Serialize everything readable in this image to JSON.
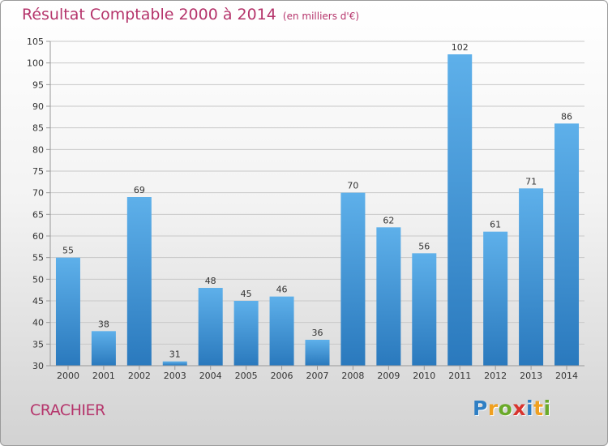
{
  "header": {
    "title": "Résultat Comptable 2000 à 2014",
    "unit": "(en milliers d'€)"
  },
  "commune": "CRACHIER",
  "brand": {
    "logo_text": "Proxiti",
    "letters": [
      {
        "ch": "P",
        "color": "#2f7fc4"
      },
      {
        "ch": "r",
        "color": "#f0a020"
      },
      {
        "ch": "o",
        "color": "#6aaa2a"
      },
      {
        "ch": "x",
        "color": "#d8342e"
      },
      {
        "ch": "i",
        "color": "#2f7fc4"
      },
      {
        "ch": "t",
        "color": "#f0a020"
      },
      {
        "ch": "i",
        "color": "#6aaa2a"
      }
    ]
  },
  "colors": {
    "title": "#b5346b",
    "bar_top": "#5eb0ea",
    "bar_bottom": "#2a79bd",
    "grid": "#c8c8c8",
    "axis": "#999999"
  },
  "chart_data": {
    "type": "bar",
    "title": "Résultat Comptable 2000 à 2014",
    "subtitle": "(en milliers d'€)",
    "xlabel": "",
    "ylabel": "",
    "categories": [
      "2000",
      "2001",
      "2002",
      "2003",
      "2004",
      "2005",
      "2006",
      "2007",
      "2008",
      "2009",
      "2010",
      "2011",
      "2012",
      "2013",
      "2014"
    ],
    "values": [
      55,
      38,
      69,
      31,
      48,
      45,
      46,
      36,
      70,
      62,
      56,
      102,
      61,
      71,
      86
    ],
    "ylim": [
      30,
      105
    ],
    "yticks": [
      30,
      35,
      40,
      45,
      50,
      55,
      60,
      65,
      70,
      75,
      80,
      85,
      90,
      95,
      100,
      105
    ],
    "grid": true
  }
}
